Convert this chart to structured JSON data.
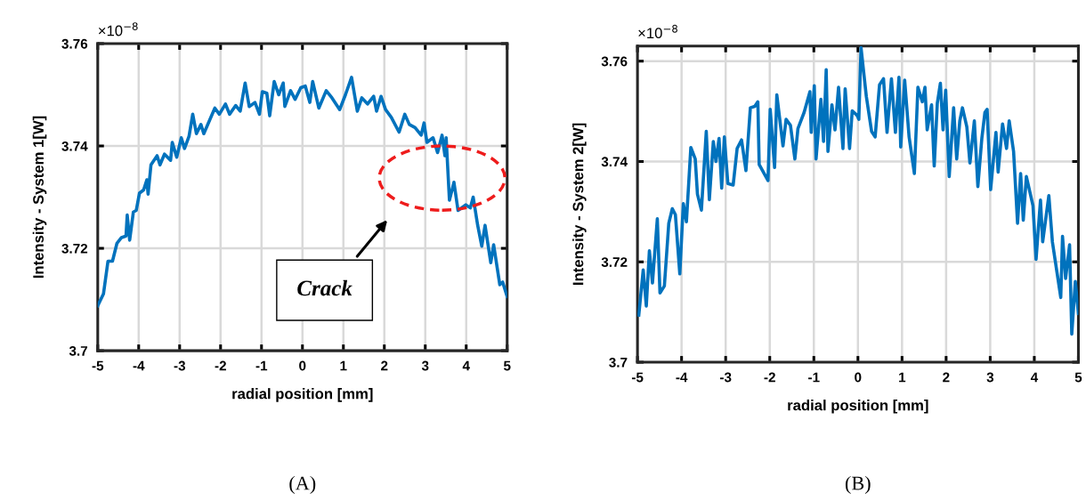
{
  "chart_data": [
    {
      "type": "line",
      "xlabel": "radial position [mm]",
      "ylabel": "Intensity - System 1[W]",
      "xlim": [
        -5,
        5
      ],
      "xticks": [
        -5,
        -4,
        -3,
        -2,
        -1,
        0,
        1,
        2,
        3,
        4,
        5
      ],
      "ylim": [
        3.7,
        3.76
      ],
      "yticks": [
        {
          "value": 3.7,
          "label": "3.7"
        },
        3.72,
        3.74,
        3.76
      ],
      "grid": true,
      "line_style": "solid",
      "marker": "none",
      "annotations": [
        "×10$^{−8}$",
        "Crack",
        "(A)"
      ],
      "series": [
        {
          "color": "#0072bd",
          "x": [
            -5,
            -4.86,
            -4.75,
            -4.64,
            -4.53,
            -4.42,
            -4.31,
            -4.28,
            -4.22,
            -4.13,
            -4.06,
            -3.98,
            -3.88,
            -3.8,
            -3.77,
            -3.7,
            -3.55,
            -3.48,
            -3.37,
            -3.22,
            -3.18,
            -3.07,
            -2.96,
            -2.88,
            -2.77,
            -2.68,
            -2.59,
            -2.48,
            -2.41,
            -2.14,
            -2.03,
            -1.88,
            -1.78,
            -1.63,
            -1.52,
            -1.4,
            -1.3,
            -1.16,
            -1.05,
            -0.98,
            -0.87,
            -0.8,
            -0.69,
            -0.58,
            -0.47,
            -0.43,
            -0.29,
            -0.18,
            -0.04,
            0.07,
            0.18,
            0.25,
            0.4,
            0.58,
            0.72,
            0.91,
            1.05,
            1.2,
            1.34,
            1.45,
            1.59,
            1.74,
            1.81,
            1.92,
            2.03,
            2.17,
            2.36,
            2.5,
            2.61,
            2.75,
            2.9,
            2.97,
            3.04,
            3.19,
            3.3,
            3.41,
            3.48,
            3.51,
            3.59,
            3.7,
            3.8,
            3.99,
            4.1,
            4.17,
            4.28,
            4.38,
            4.46,
            4.6,
            4.67,
            4.82,
            4.89,
            5
          ],
          "values": [
            3.7088,
            3.7111,
            3.7175,
            3.7175,
            3.721,
            3.7221,
            3.7224,
            3.7265,
            3.7216,
            3.7271,
            3.7274,
            3.7308,
            3.7314,
            3.7334,
            3.7306,
            3.7363,
            3.7381,
            3.7363,
            3.7384,
            3.7372,
            3.7407,
            3.7378,
            3.7416,
            3.7395,
            3.7419,
            3.7462,
            3.7424,
            3.7442,
            3.7424,
            3.7474,
            3.7462,
            3.7482,
            3.7462,
            3.7479,
            3.7468,
            3.7523,
            3.7477,
            3.7485,
            3.7462,
            3.7506,
            3.7503,
            3.7459,
            3.7526,
            3.75,
            3.7523,
            3.7477,
            3.7508,
            3.7491,
            3.7514,
            3.7517,
            3.7485,
            3.7526,
            3.7474,
            3.7508,
            3.7494,
            3.7471,
            3.75,
            3.7534,
            3.7468,
            3.7494,
            3.7482,
            3.7497,
            3.7468,
            3.7497,
            3.7471,
            3.7456,
            3.7427,
            3.7462,
            3.7442,
            3.7436,
            3.7421,
            3.7445,
            3.7407,
            3.7416,
            3.7387,
            3.7421,
            3.7381,
            3.7416,
            3.7294,
            3.7329,
            3.7274,
            3.7285,
            3.7279,
            3.73,
            3.7245,
            3.7204,
            3.7245,
            3.7172,
            3.7207,
            3.7129,
            3.7134,
            3.7106
          ]
        }
      ]
    },
    {
      "type": "line",
      "xlabel": "radial position [mm]",
      "ylabel": "Intensity - System 2[W]",
      "xlim": [
        -5,
        5
      ],
      "xticks": [
        -5,
        -4,
        -3,
        -2,
        -1,
        0,
        1,
        2,
        3,
        4,
        5
      ],
      "ylim": [
        3.7,
        3.763
      ],
      "yticks": [
        {
          "value": 3.7,
          "label": "3.7"
        },
        3.72,
        3.74,
        3.76
      ],
      "grid": true,
      "line_style": "solid",
      "marker": "none",
      "annotations": [
        "×10$^{−8}$",
        "(B)"
      ],
      "series": [
        {
          "color": "#0072bd",
          "x": [
            -4.97,
            -4.87,
            -4.8,
            -4.73,
            -4.66,
            -4.55,
            -4.49,
            -4.39,
            -4.29,
            -4.21,
            -4.14,
            -4.04,
            -3.96,
            -3.89,
            -3.79,
            -3.69,
            -3.64,
            -3.55,
            -3.44,
            -3.37,
            -3.28,
            -3.22,
            -3.15,
            -3.09,
            -3.03,
            -2.95,
            -2.83,
            -2.74,
            -2.64,
            -2.54,
            -2.44,
            -2.34,
            -2.27,
            -2.24,
            -2.04,
            -1.99,
            -1.89,
            -1.84,
            -1.7,
            -1.63,
            -1.53,
            -1.43,
            -1.36,
            -1.22,
            -1.09,
            -1.06,
            -0.99,
            -0.95,
            -0.84,
            -0.78,
            -0.72,
            -0.68,
            -0.59,
            -0.52,
            -0.44,
            -0.34,
            -0.29,
            -0.19,
            -0.13,
            -0.02,
            0.02,
            0.07,
            0.19,
            0.31,
            0.39,
            0.49,
            0.58,
            0.66,
            0.76,
            0.85,
            0.93,
            0.97,
            1.06,
            1.16,
            1.28,
            1.36,
            1.46,
            1.52,
            1.57,
            1.67,
            1.73,
            1.8,
            1.87,
            1.93,
            1.99,
            2.07,
            2.17,
            2.24,
            2.31,
            2.37,
            2.47,
            2.54,
            2.64,
            2.72,
            2.81,
            2.88,
            2.93,
            3.01,
            3.13,
            3.18,
            3.28,
            3.37,
            3.43,
            3.53,
            3.62,
            3.69,
            3.75,
            3.82,
            3.97,
            4.04,
            4.14,
            4.19,
            4.33,
            4.41,
            4.6,
            4.64,
            4.71,
            4.8,
            4.85,
            4.93,
            5
          ],
          "values": [
            3.7094,
            3.7184,
            3.7112,
            3.7222,
            3.7158,
            3.7286,
            3.7138,
            3.7152,
            3.7277,
            3.7306,
            3.7294,
            3.7176,
            3.7316,
            3.728,
            3.7428,
            3.7405,
            3.7335,
            3.7303,
            3.746,
            3.7324,
            3.744,
            3.74,
            3.7446,
            3.7347,
            3.7449,
            3.7356,
            3.7353,
            3.7426,
            3.7443,
            3.7382,
            3.7507,
            3.751,
            3.7519,
            3.7394,
            3.7362,
            3.7504,
            3.7388,
            3.7533,
            3.7431,
            3.7484,
            3.7472,
            3.7405,
            3.7466,
            3.7498,
            3.7539,
            3.7458,
            3.7551,
            3.7405,
            3.7524,
            3.744,
            3.7583,
            3.742,
            3.7513,
            3.7463,
            3.7548,
            3.7426,
            3.7545,
            3.7426,
            3.7501,
            3.7492,
            3.7484,
            3.7627,
            3.753,
            3.746,
            3.7449,
            3.7553,
            3.7565,
            3.7458,
            3.7565,
            3.7458,
            3.7568,
            3.7429,
            3.7562,
            3.7449,
            3.7376,
            3.7548,
            3.7519,
            3.7548,
            3.7463,
            3.7513,
            3.7391,
            3.7516,
            3.7556,
            3.7463,
            3.7542,
            3.737,
            3.7507,
            3.7405,
            3.7481,
            3.7507,
            3.7469,
            3.7397,
            3.7481,
            3.735,
            3.7446,
            3.7498,
            3.7504,
            3.7344,
            3.7458,
            3.7379,
            3.7475,
            3.7426,
            3.7481,
            3.742,
            3.7277,
            3.7376,
            3.7283,
            3.737,
            3.7312,
            3.7205,
            3.7323,
            3.724,
            3.7332,
            3.724,
            3.7129,
            3.7251,
            3.7167,
            3.7234,
            3.7056,
            3.7161,
            3.7097
          ]
        }
      ]
    }
  ]
}
